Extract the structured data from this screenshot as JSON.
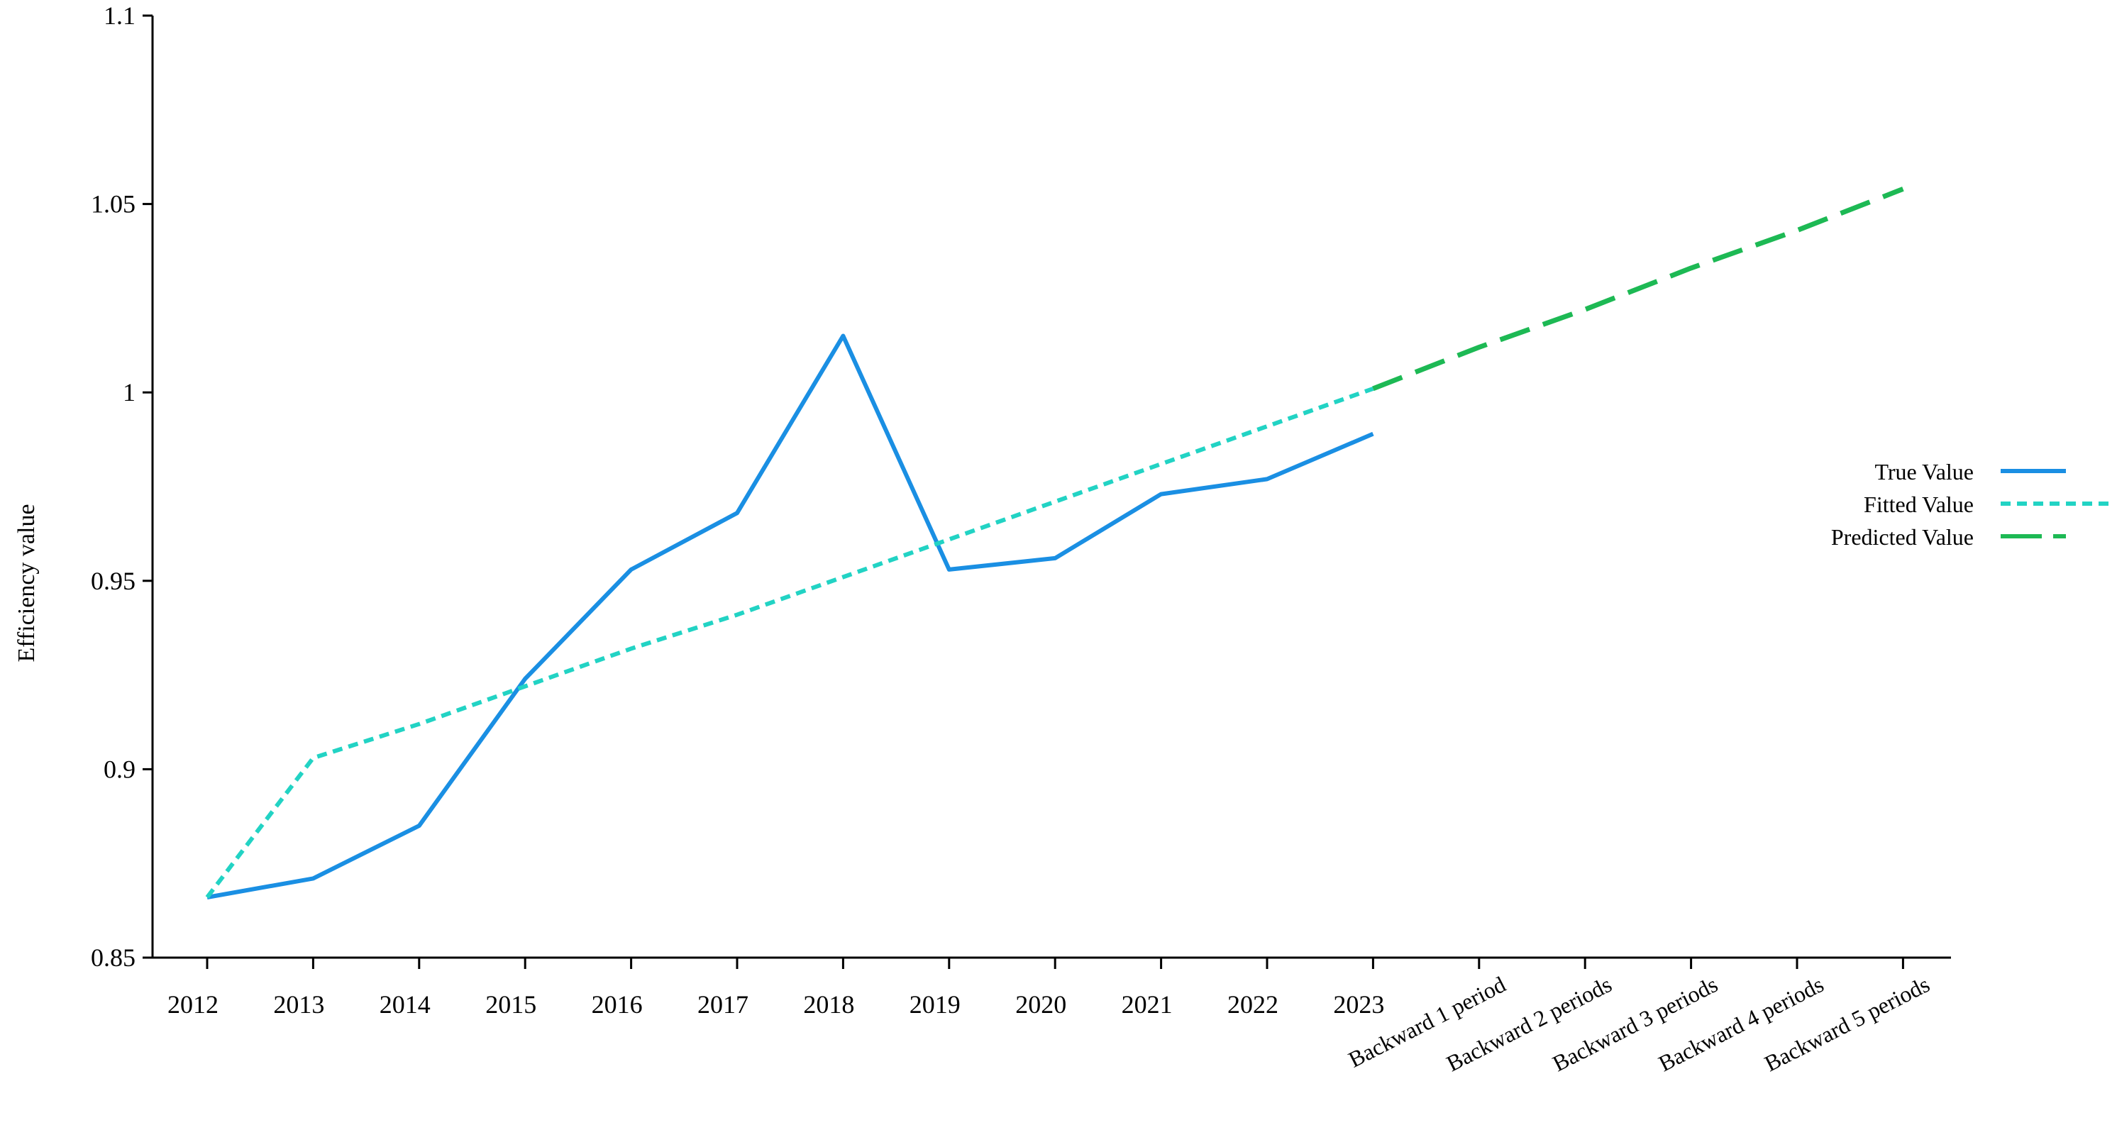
{
  "chart_data": {
    "type": "line",
    "ylabel": "Efficiency value",
    "ylim": [
      0.85,
      1.1
    ],
    "yticks": [
      0.85,
      0.9,
      0.95,
      1,
      1.05,
      1.1
    ],
    "ytick_labels": [
      "0.85",
      "0.9",
      "0.95",
      "1",
      "1.05",
      "1.1"
    ],
    "categories": [
      "2012",
      "2013",
      "2014",
      "2015",
      "2016",
      "2017",
      "2018",
      "2019",
      "2020",
      "2021",
      "2022",
      "2023",
      "Backward 1 period",
      "Backward 2 periods",
      "Backward 3 periods",
      "Backward 4 periods",
      "Backward 5 periods"
    ],
    "legend_position": "right",
    "series": [
      {
        "name": "True Value",
        "color": "#1a8fe3",
        "dash": "solid",
        "values": [
          0.866,
          0.871,
          0.885,
          0.924,
          0.953,
          0.968,
          1.015,
          0.953,
          0.956,
          0.973,
          0.977,
          0.989,
          null,
          null,
          null,
          null,
          null
        ]
      },
      {
        "name": "Fitted Value",
        "color": "#22d3c4",
        "dash": "dashed",
        "values": [
          0.866,
          0.903,
          0.912,
          0.922,
          0.932,
          0.941,
          0.951,
          0.961,
          0.971,
          0.981,
          0.991,
          1.001,
          null,
          null,
          null,
          null,
          null
        ]
      },
      {
        "name": "Predicted Value",
        "color": "#1db954",
        "dash": "long-dash",
        "values": [
          null,
          null,
          null,
          null,
          null,
          null,
          null,
          null,
          null,
          null,
          null,
          1.001,
          1.012,
          1.022,
          1.033,
          1.043,
          1.054
        ]
      }
    ]
  }
}
